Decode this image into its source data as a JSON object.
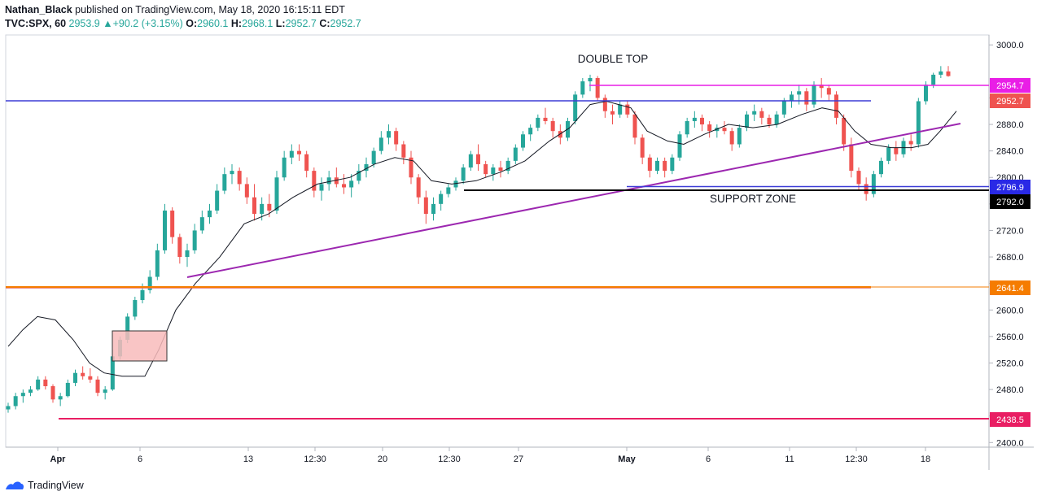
{
  "header": {
    "author": "Nathan_Black",
    "published_text": "published on TradingView.com, May 18, 2020 16:15:11 EDT",
    "symbol": "TVC:SPX, 60",
    "last": "2953.9",
    "change": "+90.2 (+3.15%)",
    "open_label": "O:",
    "open": "2960.1",
    "high_label": "H:",
    "high": "2968.1",
    "low_label": "L:",
    "low": "2952.7",
    "close_label": "C:",
    "close": "2952.7"
  },
  "footer": {
    "brand": "TradingView"
  },
  "colors": {
    "up": "#26a69a",
    "down": "#ef5350",
    "ma": "#131722",
    "magenta": "#e91ee6",
    "blue": "#3b3bd6",
    "purple": "#9c27b0",
    "orange": "#f57c00",
    "pink": "#e91e63",
    "black": "#000000"
  },
  "chart_data": {
    "type": "candlestick",
    "y_ticks": [
      2400,
      2440,
      2480,
      2520,
      2560,
      2600,
      2640,
      2680,
      2720,
      2760,
      2800,
      2840,
      2880,
      2920,
      3000
    ],
    "ylim": [
      2393,
      3015
    ],
    "x_labels": [
      "Apr",
      "6",
      "13",
      "12:30",
      "20",
      "12:30",
      "27",
      "May",
      "6",
      "11",
      "12:30",
      "18"
    ],
    "annotations": {
      "double_top": "DOUBLE TOP",
      "support_zone": "SUPPORT ZONE"
    },
    "price_labels": [
      {
        "text": "2954.7",
        "value": 2954.7,
        "color": "#e91ee6"
      },
      {
        "text": "2952.7",
        "value": 2952.7,
        "color": "#ef5350"
      },
      {
        "text": "2796.9",
        "value": 2796.9,
        "color": "#2929e6"
      },
      {
        "text": "2792.0",
        "value": 2792.0,
        "color": "#000000"
      },
      {
        "text": "2641.4",
        "value": 2641.4,
        "color": "#f57c00"
      },
      {
        "text": "2438.5",
        "value": 2438.5,
        "color": "#e91e63"
      }
    ],
    "candles": [
      [
        2450,
        2460,
        2445,
        2455
      ],
      [
        2455,
        2475,
        2450,
        2470
      ],
      [
        2470,
        2480,
        2460,
        2475
      ],
      [
        2475,
        2485,
        2470,
        2480
      ],
      [
        2480,
        2500,
        2478,
        2495
      ],
      [
        2495,
        2500,
        2480,
        2485
      ],
      [
        2485,
        2488,
        2460,
        2465
      ],
      [
        2465,
        2475,
        2455,
        2470
      ],
      [
        2470,
        2495,
        2468,
        2490
      ],
      [
        2490,
        2510,
        2485,
        2505
      ],
      [
        2505,
        2515,
        2495,
        2500
      ],
      [
        2500,
        2512,
        2490,
        2495
      ],
      [
        2495,
        2500,
        2470,
        2475
      ],
      [
        2475,
        2485,
        2465,
        2480
      ],
      [
        2480,
        2540,
        2478,
        2530
      ],
      [
        2530,
        2560,
        2525,
        2555
      ],
      [
        2555,
        2595,
        2550,
        2590
      ],
      [
        2590,
        2620,
        2585,
        2615
      ],
      [
        2615,
        2640,
        2610,
        2630
      ],
      [
        2630,
        2660,
        2625,
        2650
      ],
      [
        2650,
        2700,
        2645,
        2690
      ],
      [
        2690,
        2760,
        2685,
        2750
      ],
      [
        2750,
        2755,
        2700,
        2710
      ],
      [
        2710,
        2715,
        2670,
        2680
      ],
      [
        2680,
        2700,
        2665,
        2690
      ],
      [
        2690,
        2730,
        2685,
        2720
      ],
      [
        2720,
        2750,
        2715,
        2740
      ],
      [
        2740,
        2760,
        2730,
        2750
      ],
      [
        2750,
        2790,
        2745,
        2780
      ],
      [
        2780,
        2815,
        2775,
        2805
      ],
      [
        2805,
        2820,
        2790,
        2810
      ],
      [
        2810,
        2815,
        2780,
        2790
      ],
      [
        2790,
        2800,
        2760,
        2770
      ],
      [
        2770,
        2790,
        2735,
        2745
      ],
      [
        2745,
        2770,
        2735,
        2760
      ],
      [
        2760,
        2775,
        2740,
        2750
      ],
      [
        2750,
        2810,
        2745,
        2800
      ],
      [
        2800,
        2840,
        2795,
        2830
      ],
      [
        2830,
        2850,
        2820,
        2840
      ],
      [
        2840,
        2850,
        2825,
        2835
      ],
      [
        2835,
        2840,
        2800,
        2810
      ],
      [
        2810,
        2815,
        2770,
        2780
      ],
      [
        2780,
        2800,
        2765,
        2790
      ],
      [
        2790,
        2810,
        2780,
        2800
      ],
      [
        2800,
        2815,
        2785,
        2790
      ],
      [
        2790,
        2805,
        2775,
        2785
      ],
      [
        2785,
        2805,
        2770,
        2795
      ],
      [
        2795,
        2820,
        2790,
        2810
      ],
      [
        2810,
        2830,
        2800,
        2820
      ],
      [
        2820,
        2845,
        2815,
        2840
      ],
      [
        2840,
        2870,
        2835,
        2860
      ],
      [
        2860,
        2880,
        2850,
        2870
      ],
      [
        2870,
        2875,
        2840,
        2850
      ],
      [
        2850,
        2855,
        2820,
        2830
      ],
      [
        2830,
        2840,
        2790,
        2800
      ],
      [
        2800,
        2805,
        2760,
        2770
      ],
      [
        2770,
        2780,
        2730,
        2745
      ],
      [
        2745,
        2770,
        2735,
        2760
      ],
      [
        2760,
        2780,
        2750,
        2775
      ],
      [
        2775,
        2790,
        2770,
        2785
      ],
      [
        2785,
        2800,
        2780,
        2795
      ],
      [
        2795,
        2820,
        2790,
        2815
      ],
      [
        2815,
        2840,
        2810,
        2835
      ],
      [
        2835,
        2850,
        2810,
        2820
      ],
      [
        2820,
        2825,
        2800,
        2805
      ],
      [
        2805,
        2820,
        2795,
        2815
      ],
      [
        2815,
        2825,
        2800,
        2810
      ],
      [
        2810,
        2830,
        2805,
        2825
      ],
      [
        2825,
        2850,
        2820,
        2845
      ],
      [
        2845,
        2870,
        2840,
        2865
      ],
      [
        2865,
        2880,
        2855,
        2875
      ],
      [
        2875,
        2895,
        2870,
        2890
      ],
      [
        2890,
        2905,
        2880,
        2885
      ],
      [
        2885,
        2890,
        2860,
        2870
      ],
      [
        2870,
        2880,
        2850,
        2860
      ],
      [
        2860,
        2890,
        2855,
        2885
      ],
      [
        2885,
        2930,
        2880,
        2925
      ],
      [
        2925,
        2950,
        2920,
        2945
      ],
      [
        2945,
        2955,
        2930,
        2950
      ],
      [
        2950,
        2953,
        2915,
        2920
      ],
      [
        2920,
        2925,
        2890,
        2900
      ],
      [
        2900,
        2910,
        2880,
        2895
      ],
      [
        2895,
        2915,
        2890,
        2910
      ],
      [
        2910,
        2915,
        2890,
        2895
      ],
      [
        2895,
        2900,
        2850,
        2860
      ],
      [
        2860,
        2865,
        2820,
        2830
      ],
      [
        2830,
        2835,
        2800,
        2810
      ],
      [
        2810,
        2830,
        2805,
        2825
      ],
      [
        2825,
        2830,
        2800,
        2810
      ],
      [
        2810,
        2835,
        2805,
        2830
      ],
      [
        2830,
        2870,
        2825,
        2865
      ],
      [
        2865,
        2890,
        2860,
        2885
      ],
      [
        2885,
        2900,
        2875,
        2890
      ],
      [
        2890,
        2895,
        2870,
        2880
      ],
      [
        2880,
        2885,
        2860,
        2870
      ],
      [
        2870,
        2880,
        2860,
        2875
      ],
      [
        2875,
        2885,
        2865,
        2870
      ],
      [
        2870,
        2875,
        2840,
        2850
      ],
      [
        2850,
        2880,
        2845,
        2875
      ],
      [
        2875,
        2900,
        2870,
        2895
      ],
      [
        2895,
        2910,
        2885,
        2900
      ],
      [
        2900,
        2905,
        2880,
        2890
      ],
      [
        2890,
        2895,
        2875,
        2880
      ],
      [
        2880,
        2900,
        2875,
        2895
      ],
      [
        2895,
        2920,
        2890,
        2915
      ],
      [
        2915,
        2930,
        2905,
        2925
      ],
      [
        2925,
        2940,
        2910,
        2930
      ],
      [
        2930,
        2935,
        2900,
        2910
      ],
      [
        2910,
        2945,
        2905,
        2940
      ],
      [
        2940,
        2950,
        2920,
        2935
      ],
      [
        2935,
        2940,
        2915,
        2925
      ],
      [
        2925,
        2930,
        2880,
        2890
      ],
      [
        2890,
        2895,
        2840,
        2850
      ],
      [
        2850,
        2860,
        2800,
        2810
      ],
      [
        2810,
        2815,
        2780,
        2790
      ],
      [
        2790,
        2800,
        2765,
        2775
      ],
      [
        2775,
        2810,
        2770,
        2805
      ],
      [
        2805,
        2830,
        2800,
        2825
      ],
      [
        2825,
        2850,
        2820,
        2845
      ],
      [
        2845,
        2855,
        2825,
        2835
      ],
      [
        2835,
        2860,
        2830,
        2855
      ],
      [
        2855,
        2865,
        2840,
        2850
      ],
      [
        2850,
        2920,
        2845,
        2915
      ],
      [
        2915,
        2945,
        2910,
        2940
      ],
      [
        2940,
        2958,
        2935,
        2955
      ],
      [
        2955,
        2968,
        2950,
        2960
      ],
      [
        2960,
        2968,
        2952,
        2953
      ]
    ],
    "ma": [
      [
        0,
        2545
      ],
      [
        18,
        2570
      ],
      [
        36,
        2590
      ],
      [
        58,
        2585
      ],
      [
        80,
        2555
      ],
      [
        100,
        2520
      ],
      [
        118,
        2505
      ],
      [
        140,
        2500
      ],
      [
        168,
        2500
      ],
      [
        185,
        2540
      ],
      [
        206,
        2600
      ],
      [
        230,
        2640
      ],
      [
        260,
        2680
      ],
      [
        290,
        2730
      ],
      [
        320,
        2745
      ],
      [
        350,
        2770
      ],
      [
        380,
        2790
      ],
      [
        420,
        2800
      ],
      [
        450,
        2820
      ],
      [
        475,
        2830
      ],
      [
        498,
        2825
      ],
      [
        520,
        2795
      ],
      [
        545,
        2790
      ],
      [
        575,
        2795
      ],
      [
        605,
        2808
      ],
      [
        635,
        2825
      ],
      [
        665,
        2855
      ],
      [
        690,
        2875
      ],
      [
        715,
        2910
      ],
      [
        735,
        2915
      ],
      [
        765,
        2905
      ],
      [
        785,
        2870
      ],
      [
        810,
        2855
      ],
      [
        830,
        2850
      ],
      [
        855,
        2865
      ],
      [
        885,
        2880
      ],
      [
        915,
        2875
      ],
      [
        945,
        2880
      ],
      [
        975,
        2895
      ],
      [
        1000,
        2905
      ],
      [
        1020,
        2900
      ],
      [
        1040,
        2870
      ],
      [
        1060,
        2850
      ],
      [
        1085,
        2845
      ],
      [
        1110,
        2845
      ],
      [
        1130,
        2850
      ],
      [
        1145,
        2870
      ],
      [
        1165,
        2900
      ]
    ]
  }
}
